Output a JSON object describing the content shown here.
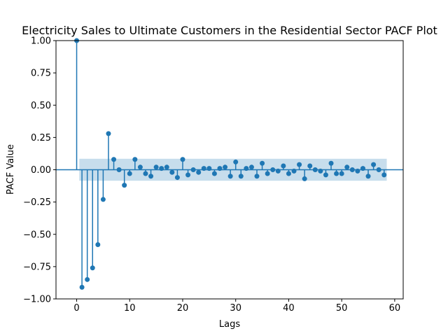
{
  "chart_data": {
    "type": "scatter",
    "subtype": "stem",
    "title": "Electricity Sales to Ultimate Customers in the Residential Sector PACF Plot",
    "xlabel": "Lags",
    "ylabel": "PACF Value",
    "xlim": [
      -3.9,
      61.6
    ],
    "ylim": [
      -1.0,
      1.0
    ],
    "xticks": [
      0,
      10,
      20,
      30,
      40,
      50,
      60
    ],
    "yticks": [
      -1.0,
      -0.75,
      -0.5,
      -0.25,
      0.0,
      0.25,
      0.5,
      0.75,
      1.0
    ],
    "xtick_labels": [
      "0",
      "10",
      "20",
      "30",
      "40",
      "50",
      "60"
    ],
    "ytick_labels": [
      "−1.00",
      "−0.75",
      "−0.50",
      "−0.25",
      "0.00",
      "0.25",
      "0.50",
      "0.75",
      "1.00"
    ],
    "confidence_band": {
      "lower": -0.085,
      "upper": 0.085,
      "x_from": 0.5,
      "x_to": 58.5
    },
    "grid": false,
    "colors": {
      "series": "#1f77b4",
      "band": "#1f77b4",
      "band_opacity": 0.25
    },
    "series": [
      {
        "x": [
          0,
          1,
          2,
          3,
          4,
          5,
          6,
          7,
          8,
          9,
          10,
          11,
          12,
          13,
          14,
          15,
          16,
          17,
          18,
          19,
          20,
          21,
          22,
          23,
          24,
          25,
          26,
          27,
          28,
          29,
          30,
          31,
          32,
          33,
          34,
          35,
          36,
          37,
          38,
          39,
          40,
          41,
          42,
          43,
          44,
          45,
          46,
          47,
          48,
          49,
          50,
          51,
          52,
          53,
          54,
          55,
          56,
          57,
          58
        ],
        "values": [
          1.0,
          -0.91,
          -0.85,
          -0.76,
          -0.58,
          -0.23,
          0.28,
          0.08,
          0.0,
          -0.12,
          -0.03,
          0.08,
          0.02,
          -0.03,
          -0.05,
          0.02,
          0.01,
          0.02,
          -0.02,
          -0.06,
          0.08,
          -0.04,
          0.0,
          -0.02,
          0.01,
          0.01,
          -0.03,
          0.01,
          0.02,
          -0.05,
          0.06,
          -0.05,
          0.01,
          0.02,
          -0.05,
          0.05,
          -0.03,
          0.0,
          -0.01,
          0.03,
          -0.03,
          -0.01,
          0.04,
          -0.07,
          0.03,
          0.0,
          -0.01,
          -0.04,
          0.05,
          -0.03,
          -0.03,
          0.02,
          0.0,
          -0.01,
          0.01,
          -0.05,
          0.04,
          0.0,
          -0.04
        ]
      }
    ]
  }
}
